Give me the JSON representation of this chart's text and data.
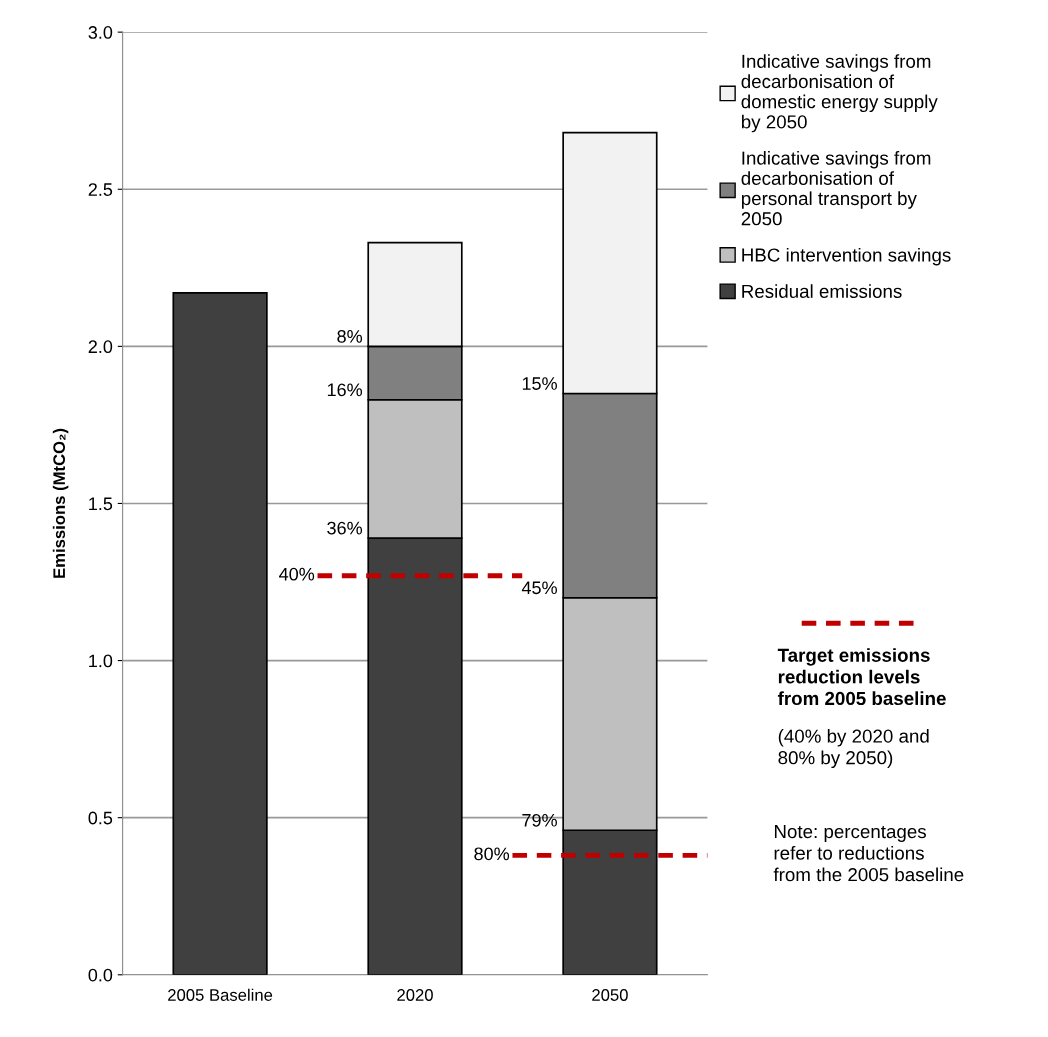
{
  "chart_data": {
    "type": "bar",
    "stacked": true,
    "ylabel": "Emissions (MtCO₂)",
    "categories": [
      "2005 Baseline",
      "2020",
      "2050"
    ],
    "series": [
      {
        "name": "Residual emissions",
        "color": "#404040",
        "values": [
          2.17,
          1.39,
          0.46
        ]
      },
      {
        "name": "HBC intervention savings",
        "color": "#bfbfbf",
        "values": [
          null,
          0.44,
          0.74
        ]
      },
      {
        "name": "Indicative savings from decarbonisation of personal transport by 2050",
        "color": "#808080",
        "values": [
          null,
          0.17,
          0.65
        ]
      },
      {
        "name": "Indicative savings from decarbonisation of domestic energy supply by 2050",
        "color": "#f2f2f2",
        "values": [
          null,
          0.33,
          0.83
        ]
      }
    ],
    "ylim": [
      0,
      3.0
    ],
    "yticks": [
      {
        "value": 0,
        "label": "0.0"
      },
      {
        "value": 0.5,
        "label": "0.5"
      },
      {
        "value": 1,
        "label": "1.0"
      },
      {
        "value": 1.5,
        "label": "1.5"
      },
      {
        "value": 2,
        "label": "2.0"
      },
      {
        "value": 2.5,
        "label": "2.5"
      },
      {
        "value": 3,
        "label": "3.0"
      }
    ],
    "ref_lines": [
      {
        "axis": "y",
        "value": 1.27,
        "color": "#c00000",
        "line_style": "dashed"
      },
      {
        "axis": "y",
        "value": 0.38,
        "color": "#c00000",
        "line_style": "dashed"
      }
    ],
    "annotations": [
      "Target emissions reduction levels from 2005 baseline",
      "(40% by 2020 and 80% by 2050)",
      "Note: percentages refer to reductions from the 2005 baseline",
      {
        "text": "8%",
        "x": "2020",
        "y": 2.0
      },
      {
        "text": "16%",
        "x": "2020",
        "y": 1.83
      },
      {
        "text": "36%",
        "x": "2020",
        "y": 1.39
      },
      "40%",
      {
        "text": "15%",
        "x": "2050",
        "y": 1.85
      },
      {
        "text": "45%",
        "x": "2050",
        "y": 1.2
      },
      {
        "text": "79%",
        "x": "2050",
        "y": 0.46
      },
      "80%"
    ],
    "grid": "y",
    "legend": "right"
  }
}
